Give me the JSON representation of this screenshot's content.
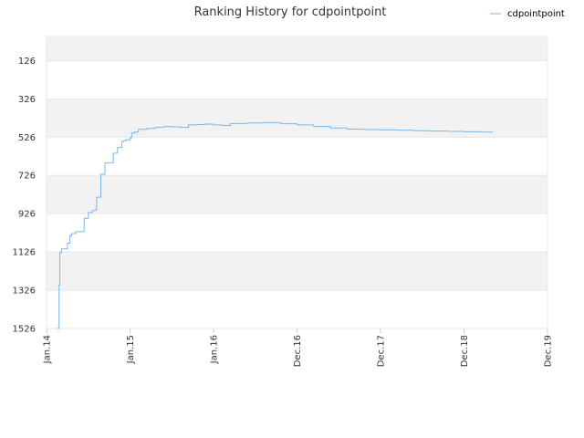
{
  "chart_data": {
    "type": "line",
    "title": "Ranking History for cdpointpoint",
    "xlabel": "",
    "ylabel": "",
    "x_ticks": [
      "Jan.14",
      "Jan.15",
      "Jan.16",
      "Dec.16",
      "Dec.17",
      "Dec.18",
      "Dec.19"
    ],
    "y_ticks": [
      126,
      326,
      526,
      726,
      926,
      1126,
      1326,
      1526
    ],
    "ylim": [
      1526,
      0
    ],
    "y_inverted": true,
    "grid": true,
    "banded_background": true,
    "legend": "top-right",
    "colors": {
      "series": "#7cb5ec",
      "band": "#f2f2f2",
      "grid": "#e6e6e6",
      "axis": "#cccccc"
    },
    "series": [
      {
        "name": "cdpointpoint",
        "x": [
          0.13,
          0.15,
          0.16,
          0.18,
          0.2,
          0.25,
          0.28,
          0.3,
          0.35,
          0.4,
          0.45,
          0.5,
          0.55,
          0.58,
          0.6,
          0.65,
          0.7,
          0.8,
          0.85,
          0.9,
          0.92,
          0.95,
          1.0,
          1.02,
          1.05,
          1.1,
          1.2,
          1.3,
          1.4,
          1.45,
          1.5,
          1.6,
          1.7,
          1.8,
          1.9,
          2.0,
          2.1,
          2.2,
          2.4,
          2.6,
          2.8,
          3.0,
          3.2,
          3.4,
          3.6,
          3.8,
          4.0,
          4.2,
          4.4,
          4.6,
          4.8,
          5.0,
          5.2,
          5.35
        ],
        "y": [
          1526,
          1300,
          1130,
          1110,
          1110,
          1080,
          1040,
          1030,
          1020,
          1020,
          950,
          920,
          910,
          905,
          840,
          720,
          660,
          610,
          580,
          550,
          545,
          540,
          530,
          505,
          500,
          485,
          480,
          475,
          470,
          470,
          472,
          475,
          462,
          460,
          458,
          462,
          465,
          455,
          452,
          450,
          456,
          462,
          470,
          478,
          484,
          486,
          488,
          490,
          492,
          494,
          496,
          498,
          500,
          500
        ]
      }
    ]
  }
}
